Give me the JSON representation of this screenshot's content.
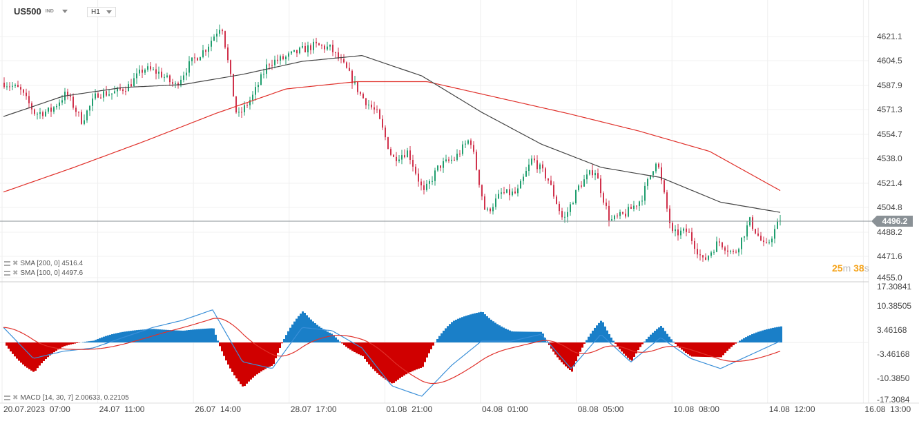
{
  "header": {
    "symbol": "US500",
    "symbol_type": "IND",
    "timeframe": "H1"
  },
  "price_axis": [
    "4621.1",
    "4604.5",
    "4587.9",
    "4571.3",
    "4554.7",
    "4538.0",
    "4521.4",
    "4504.8",
    "4488.2",
    "4471.6",
    "4455.0"
  ],
  "macd_axis": [
    "17.30841",
    "10.38505",
    "3.46168",
    "-3.46168",
    "-10.3850",
    "-17.3084"
  ],
  "time_axis": [
    "20.07.2023  07:00",
    "24.07  11:00",
    "26.07  14:00",
    "28.07  17:00",
    "01.08  21:00",
    "04.08  01:00",
    "08.08  05:00",
    "10.08  08:00",
    "14.08  12:00",
    "16.08  13:00"
  ],
  "current_price": "4496.2",
  "countdown": {
    "min": "25",
    "min_unit": "m",
    "sec": "38",
    "sec_unit": "s"
  },
  "indicators": {
    "sma200": {
      "label": "SMA [200,  0] 4516.4",
      "color": "#e0302a"
    },
    "sma100": {
      "label": "SMA [100,  0] 4497.6",
      "color": "#444444"
    },
    "macd": {
      "label": "MACD [14, 30, 7] 2.00633,  0.22105"
    }
  },
  "colors": {
    "up": "#1f9e6e",
    "down": "#d0314b",
    "hist_pos": "#1a7fc8",
    "hist_neg": "#d00000",
    "macd_line": "#3a8fd8",
    "signal_line": "#e0302a"
  },
  "chart_data": {
    "type": "candlestick",
    "price_range": [
      4455.0,
      4621.1
    ],
    "close_anchors": [
      4589.3,
      4584.6,
      4568,
      4570,
      4582,
      4563,
      4582,
      4582,
      4587,
      4599,
      4596,
      4587,
      4603,
      4613,
      4630,
      4565,
      4580,
      4603,
      4606,
      4611,
      4615,
      4613,
      4599,
      4580,
      4568,
      4537,
      4542,
      4513,
      4532,
      4537,
      4551,
      4499,
      4513,
      4513,
      4537,
      4523,
      4494,
      4518,
      4530,
      4494,
      4499,
      4509,
      4537,
      4485,
      4487,
      4466,
      4480,
      4471,
      4494,
      4475,
      4496.2
    ],
    "sma200_anchors": [
      4514,
      4531,
      4549,
      4568,
      4585,
      4590,
      4590,
      4579,
      4568,
      4556,
      4542,
      4515
    ],
    "sma100_anchors": [
      4566,
      4580,
      4586,
      4588,
      4595,
      4604,
      4608,
      4594,
      4569,
      4547,
      4531,
      4524,
      4507,
      4500
    ],
    "macd_range": [
      -17.3084,
      17.30841
    ],
    "macd_anchors": [
      4.6,
      -4.9,
      -2.7,
      -1.7,
      1.5,
      4.6,
      6.8,
      10,
      -5.9,
      -8,
      4.6,
      3.6,
      -1.7,
      -13.3,
      -16.5,
      -7,
      0.4,
      0.4,
      2.5,
      -8,
      2.5,
      -6,
      1.5,
      -4.9,
      -8,
      -3.8,
      0.4
    ],
    "signal_period": 7
  }
}
